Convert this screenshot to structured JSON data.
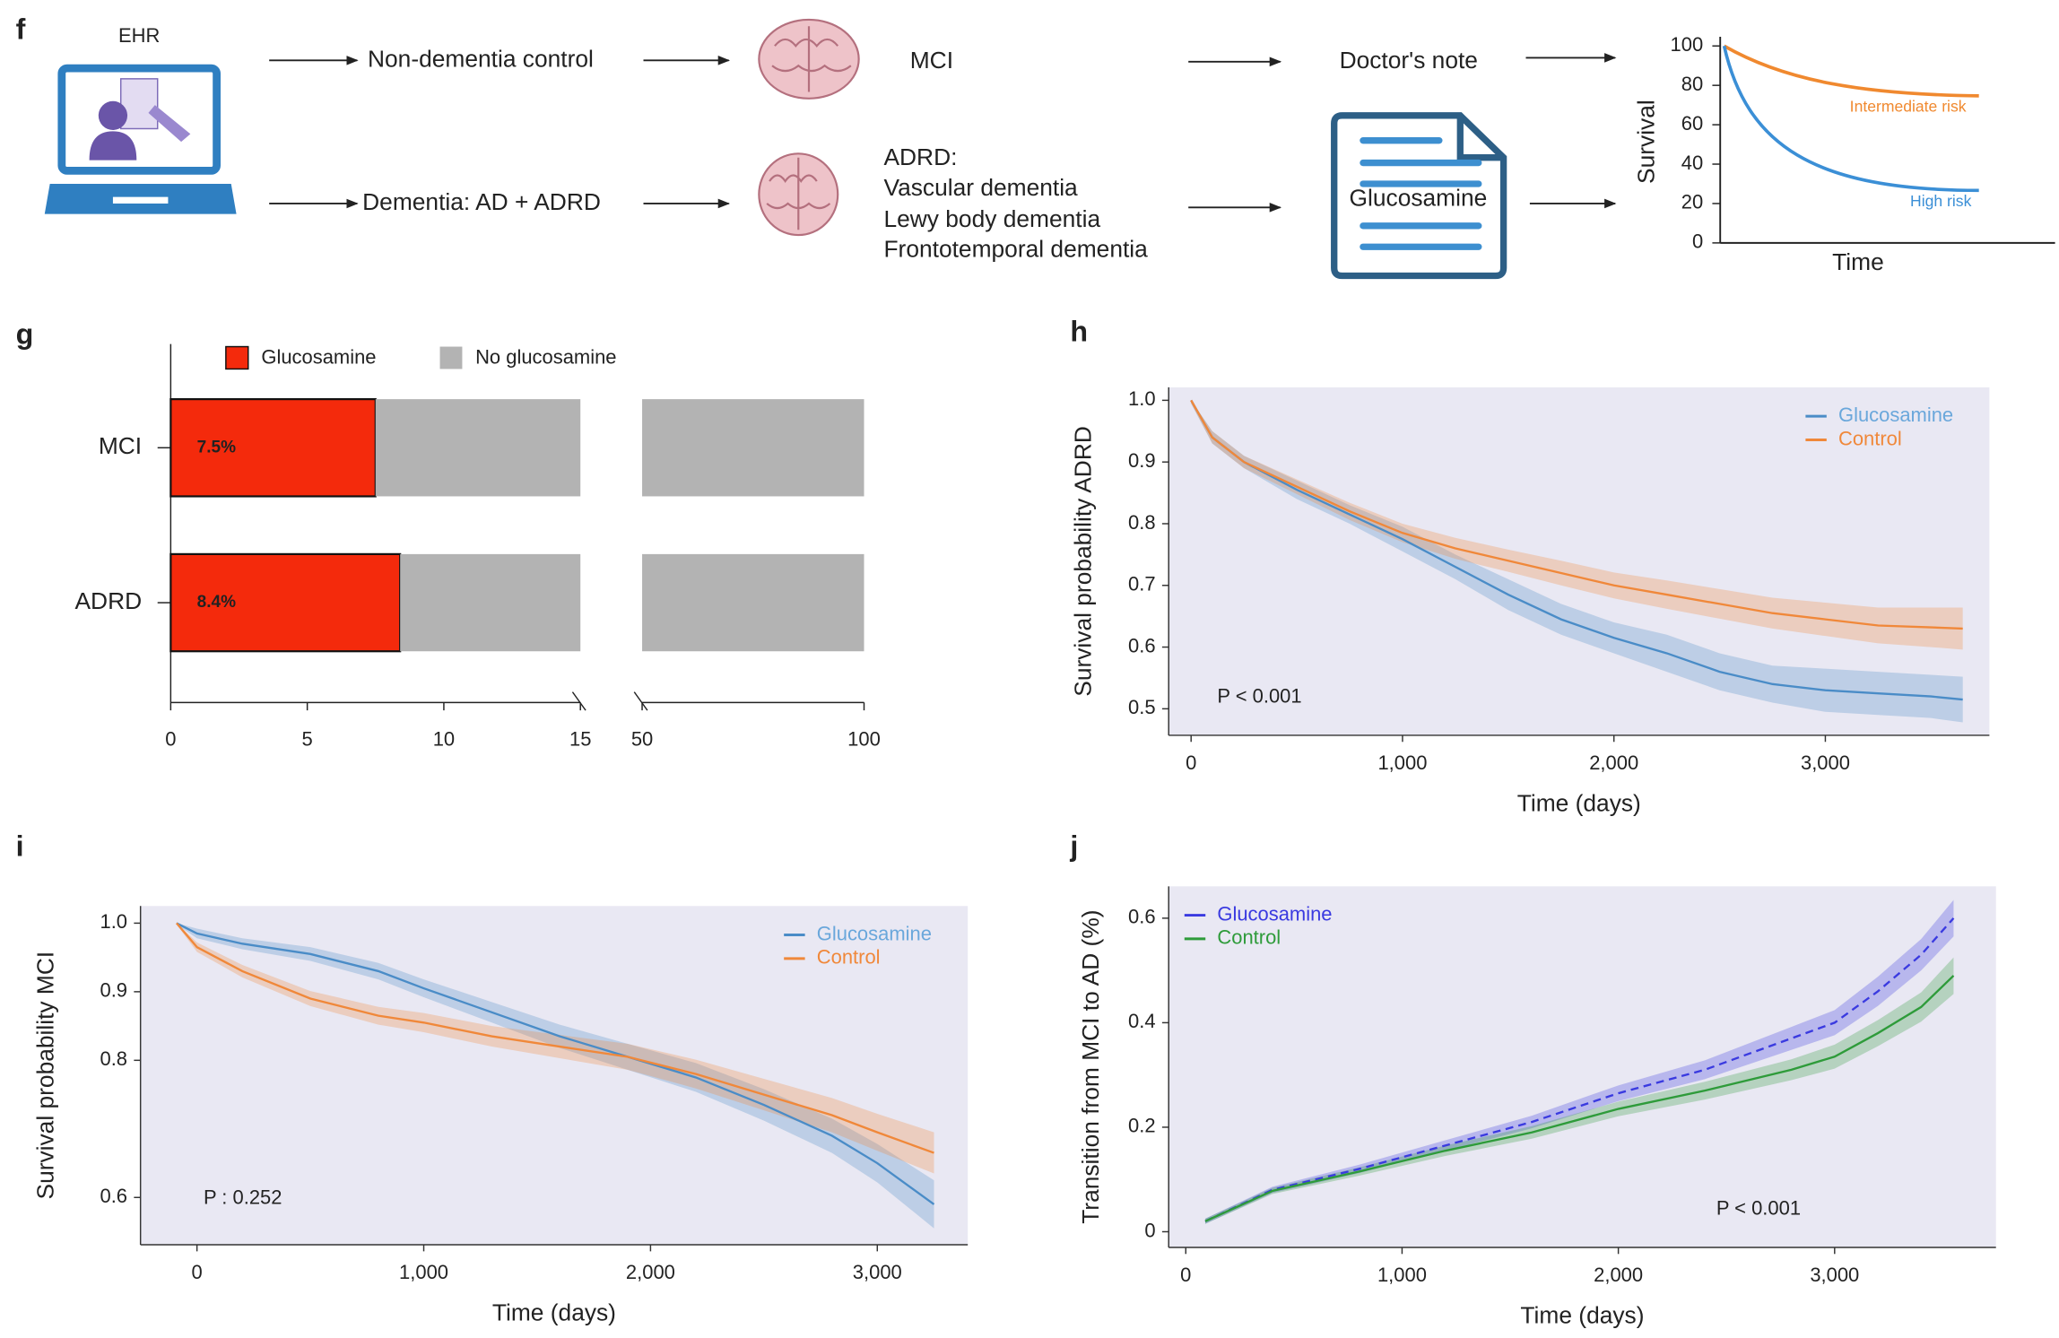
{
  "diagram": {
    "panel": "f",
    "ehr": "EHR",
    "flow": {
      "control": "Non-dementia control",
      "dementia": "Dementia: AD + ADRD",
      "mci": "MCI",
      "adrd_types": [
        "ADRD:",
        "Vascular dementia",
        "Lewy body dementia",
        "Frontotemporal dementia"
      ],
      "doctors_note": "Doctor's note",
      "note_text": "Glucosamine"
    },
    "survival_schematic": {
      "ylabel": "Survival",
      "xlabel": "Time",
      "yticks": [
        0,
        20,
        40,
        60,
        80,
        100
      ],
      "curves": [
        {
          "label": "Intermediate risk",
          "color": "#f0892f"
        },
        {
          "label": "High risk",
          "color": "#3b8fd6"
        }
      ]
    }
  },
  "chart_data": [
    {
      "panel": "g",
      "type": "bar",
      "orientation": "horizontal",
      "stacked": true,
      "categories": [
        "MCI",
        "ADRD"
      ],
      "series": [
        {
          "name": "Glucosamine",
          "color": "#f42a0c",
          "values": [
            7.5,
            8.4
          ],
          "value_labels": [
            "7.5%",
            "8.4%"
          ]
        },
        {
          "name": "No glucosamine",
          "color": "#b3b3b3",
          "values": [
            92.5,
            91.6
          ]
        }
      ],
      "xlim": [
        0,
        100
      ],
      "xbreak": [
        15,
        50
      ],
      "xticks": [
        0,
        5,
        10,
        15,
        50,
        100
      ]
    },
    {
      "panel": "h",
      "type": "line",
      "legend": "upper right",
      "background": "#e9e8f3",
      "x": [
        0,
        100,
        250,
        500,
        750,
        1000,
        1250,
        1500,
        1750,
        2000,
        2250,
        2500,
        2750,
        3000,
        3250,
        3500,
        3650
      ],
      "series": [
        {
          "name": "Glucosamine",
          "color": "#4a8cc7",
          "text_color": "#6aa7db",
          "values": [
            1.0,
            0.94,
            0.9,
            0.855,
            0.815,
            0.775,
            0.73,
            0.685,
            0.645,
            0.615,
            0.59,
            0.56,
            0.54,
            0.53,
            0.525,
            0.52,
            0.515
          ],
          "lower": [
            0.995,
            0.93,
            0.89,
            0.84,
            0.8,
            0.755,
            0.71,
            0.66,
            0.62,
            0.59,
            0.56,
            0.53,
            0.51,
            0.495,
            0.49,
            0.485,
            0.478
          ],
          "upper": [
            1.0,
            0.95,
            0.91,
            0.87,
            0.83,
            0.795,
            0.75,
            0.71,
            0.67,
            0.64,
            0.62,
            0.59,
            0.57,
            0.565,
            0.56,
            0.555,
            0.552
          ]
        },
        {
          "name": "Control",
          "color": "#f0883a",
          "values": [
            1.0,
            0.94,
            0.9,
            0.86,
            0.82,
            0.785,
            0.76,
            0.74,
            0.72,
            0.7,
            0.685,
            0.67,
            0.655,
            0.645,
            0.635,
            0.632,
            0.63
          ],
          "lower": [
            0.995,
            0.93,
            0.89,
            0.848,
            0.806,
            0.77,
            0.743,
            0.722,
            0.7,
            0.679,
            0.662,
            0.646,
            0.63,
            0.618,
            0.606,
            0.6,
            0.596
          ],
          "upper": [
            1.0,
            0.95,
            0.91,
            0.872,
            0.834,
            0.8,
            0.777,
            0.758,
            0.74,
            0.721,
            0.708,
            0.694,
            0.68,
            0.672,
            0.664,
            0.664,
            0.664
          ]
        }
      ],
      "xlabel": "Time (days)",
      "ylabel": "Survival probability ADRD",
      "annotation": "P < 0.001",
      "xlim": [
        -106,
        3776
      ],
      "ylim": [
        0.457,
        1.021
      ],
      "xticks": [
        0,
        {
          "value": 1000,
          "label": "1,000"
        },
        {
          "value": 2000,
          "label": "2,000"
        },
        {
          "value": 3000,
          "label": "3,000"
        }
      ],
      "yticks": [
        0.5,
        0.6,
        0.7,
        0.8,
        0.9,
        {
          "value": 1,
          "label": "1.0"
        }
      ]
    },
    {
      "panel": "i",
      "type": "line",
      "legend": "upper right",
      "background": "#e9e8f3",
      "x": [
        -90,
        0,
        200,
        500,
        800,
        1000,
        1300,
        1600,
        1900,
        2200,
        2500,
        2800,
        3000,
        3250
      ],
      "series": [
        {
          "name": "Glucosamine",
          "color": "#4a8cc7",
          "text_color": "#6aa7db",
          "values": [
            1.0,
            0.985,
            0.97,
            0.955,
            0.93,
            0.905,
            0.87,
            0.835,
            0.805,
            0.775,
            0.735,
            0.69,
            0.65,
            0.59
          ],
          "lower": [
            0.998,
            0.978,
            0.962,
            0.945,
            0.918,
            0.892,
            0.855,
            0.818,
            0.786,
            0.754,
            0.712,
            0.665,
            0.622,
            0.555
          ],
          "upper": [
            1.0,
            0.992,
            0.978,
            0.965,
            0.942,
            0.918,
            0.885,
            0.852,
            0.824,
            0.796,
            0.758,
            0.715,
            0.678,
            0.625
          ]
        },
        {
          "name": "Control",
          "color": "#f0883a",
          "values": [
            1.0,
            0.965,
            0.93,
            0.89,
            0.865,
            0.855,
            0.835,
            0.82,
            0.805,
            0.78,
            0.75,
            0.72,
            0.695,
            0.665
          ],
          "lower": [
            0.998,
            0.958,
            0.921,
            0.879,
            0.852,
            0.841,
            0.82,
            0.803,
            0.786,
            0.759,
            0.727,
            0.695,
            0.668,
            0.635
          ],
          "upper": [
            1.0,
            0.972,
            0.939,
            0.901,
            0.878,
            0.869,
            0.85,
            0.837,
            0.824,
            0.801,
            0.773,
            0.745,
            0.722,
            0.695
          ]
        }
      ],
      "xlabel": "Time (days)",
      "ylabel": "Survival probability MCI",
      "annotation": "P : 0.252",
      "xlim": [
        -249,
        3399
      ],
      "ylim": [
        0.531,
        1.025
      ],
      "xticks": [
        0,
        {
          "value": 1000,
          "label": "1,000"
        },
        {
          "value": 2000,
          "label": "2,000"
        },
        {
          "value": 3000,
          "label": "3,000"
        }
      ],
      "yticks": [
        0.6,
        0.8,
        0.9,
        {
          "value": 1,
          "label": "1.0"
        }
      ]
    },
    {
      "panel": "j",
      "type": "line",
      "legend": "upper left",
      "background": "#e9e8f3",
      "x": [
        90,
        400,
        800,
        1200,
        1600,
        2000,
        2400,
        2800,
        3000,
        3200,
        3400,
        3550
      ],
      "series": [
        {
          "name": "Glucosamine",
          "color": "#3a3ae0",
          "dash": true,
          "values": [
            0.02,
            0.08,
            0.12,
            0.165,
            0.21,
            0.265,
            0.31,
            0.37,
            0.4,
            0.46,
            0.53,
            0.6
          ],
          "lower": [
            0.015,
            0.074,
            0.112,
            0.155,
            0.198,
            0.25,
            0.292,
            0.348,
            0.376,
            0.432,
            0.5,
            0.565
          ],
          "upper": [
            0.025,
            0.086,
            0.128,
            0.175,
            0.222,
            0.28,
            0.328,
            0.392,
            0.424,
            0.488,
            0.56,
            0.635
          ]
        },
        {
          "name": "Control",
          "color": "#2e9b3a",
          "values": [
            0.02,
            0.078,
            0.115,
            0.155,
            0.19,
            0.235,
            0.27,
            0.31,
            0.335,
            0.38,
            0.43,
            0.49
          ],
          "lower": [
            0.015,
            0.072,
            0.107,
            0.145,
            0.178,
            0.221,
            0.253,
            0.29,
            0.312,
            0.355,
            0.402,
            0.455
          ],
          "upper": [
            0.025,
            0.084,
            0.123,
            0.165,
            0.202,
            0.249,
            0.287,
            0.33,
            0.358,
            0.405,
            0.458,
            0.525
          ]
        }
      ],
      "xlabel": "Time (days)",
      "ylabel": "Transition from MCI to AD (%)",
      "annotation": "P < 0.001",
      "xlim": [
        -79,
        3746
      ],
      "ylim": [
        -0.03,
        0.661
      ],
      "xticks": [
        0,
        {
          "value": 1000,
          "label": "1,000"
        },
        {
          "value": 2000,
          "label": "2,000"
        },
        {
          "value": 3000,
          "label": "3,000"
        }
      ],
      "yticks": [
        0,
        0.2,
        0.4,
        0.6
      ]
    }
  ]
}
